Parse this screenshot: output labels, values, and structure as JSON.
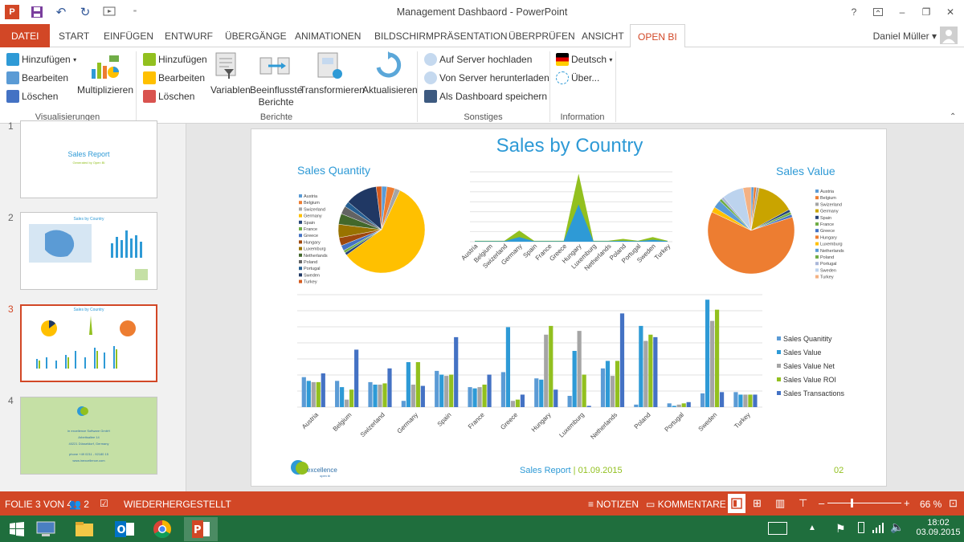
{
  "window": {
    "title": "Management Dashbaord - PowerPoint",
    "help": "?",
    "minimize": "–",
    "restore": "❐",
    "close": "✕"
  },
  "ribbon_tabs": [
    "DATEI",
    "START",
    "EINFÜGEN",
    "ENTWURF",
    "ÜBERGÄNGE",
    "ANIMATIONEN",
    "BILDSCHIRMPRÄSENTATION",
    "ÜBERPRÜFEN",
    "ANSICHT",
    "OPEN BI"
  ],
  "user": "Daniel Müller",
  "ribbon": {
    "vis": {
      "add": "Hinzufügen",
      "edit": "Bearbeiten",
      "delete": "Löschen",
      "multi": "Multiplizieren",
      "label": "Visualisierungen"
    },
    "rep": {
      "add": "Hinzufügen",
      "edit": "Bearbeiten",
      "delete": "Löschen",
      "variables": "Variablen",
      "influenced1": "Beeinflusste",
      "influenced2": "Berichte",
      "transform": "Transformieren",
      "refresh": "Aktualisieren",
      "label": "Berichte"
    },
    "misc": {
      "upload": "Auf Server hochladen",
      "download": "Von Server herunterladen",
      "dashboard": "Als Dashboard speichern",
      "label": "Sonstiges"
    },
    "info": {
      "lang": "Deutsch",
      "about": "Über...",
      "label": "Information"
    }
  },
  "thumbnails": {
    "numbers": [
      "1",
      "2",
      "3",
      "4"
    ],
    "t1_title": "Sales Report",
    "t1_sub": "Generated by Open BI",
    "t2_title": "Sales by Country",
    "t3_title": "Sales by Country",
    "t4_lines": [
      "in excellence Software GmbH",
      "Arbeitsallee 14",
      "40221 Düsseldorf, Germany",
      "phone +49 0211 - 92180 15",
      "www.inexcellence.com"
    ]
  },
  "slide": {
    "title": "Sales by Country",
    "qty_title": "Sales Quantity",
    "value_title": "Sales Value",
    "footer_report": "Sales Report",
    "footer_date": "01.09.2015",
    "page": "02",
    "logo_text": "excellence",
    "logo_sub": "open bi"
  },
  "colors": {
    "accent": "#d24726",
    "title_blue": "#2e9ad6",
    "green": "#92c01f",
    "taskbar": "#1f6e3d"
  },
  "chart_data": [
    {
      "type": "pie",
      "title": "Sales Quantity",
      "categories": [
        "Austria",
        "Belgium",
        "Swizerland",
        "Germany",
        "Spain",
        "France",
        "Greece",
        "Hungary",
        "Luxemburg",
        "Netherlands",
        "Poland",
        "Portugal",
        "Sweden",
        "Turkey"
      ],
      "values": [
        2,
        3,
        2,
        58,
        1,
        1,
        2,
        3,
        5,
        4,
        3,
        2,
        12,
        2
      ],
      "colors": [
        "#5b9bd5",
        "#ed7d31",
        "#a5a5a5",
        "#ffc000",
        "#264478",
        "#70ad47",
        "#4472c4",
        "#9e480e",
        "#997300",
        "#43682b",
        "#636363",
        "#255e91",
        "#203864",
        "#d55b1f"
      ],
      "legend": "left"
    },
    {
      "type": "area",
      "categories": [
        "Austria",
        "Belgium",
        "Swizerland",
        "Germany",
        "Spain",
        "France",
        "Greece",
        "Hungary",
        "Luxemburg",
        "Netherlands",
        "Poland",
        "Portugal",
        "Sweden",
        "Turkey"
      ],
      "series": [
        {
          "values": [
            1,
            1,
            1,
            12,
            1,
            1,
            1,
            73,
            1,
            1,
            3,
            1,
            5,
            1
          ],
          "color": "#92c01f"
        },
        {
          "values": [
            0.5,
            0.5,
            0.5,
            5,
            0.5,
            0.5,
            0.5,
            40,
            0.5,
            0.5,
            1,
            0.5,
            2,
            0.5
          ],
          "color": "#2e9ad6"
        }
      ],
      "grid": true
    },
    {
      "type": "pie",
      "title": "Sales Value",
      "categories": [
        "Austria",
        "Belgium",
        "Swizerland",
        "Germany",
        "Spain",
        "France",
        "Greece",
        "Hungary",
        "Luxemburg",
        "Netherlands",
        "Poland",
        "Portugal",
        "Sweden",
        "Turkey"
      ],
      "values": [
        1,
        1,
        1,
        14,
        1,
        1,
        1,
        62,
        2,
        3,
        1,
        1,
        8,
        3
      ],
      "colors": [
        "#5b9bd5",
        "#ed7d31",
        "#a5a5a5",
        "#c9a400",
        "#264478",
        "#70ad47",
        "#4472c4",
        "#ed7d31",
        "#ffc000",
        "#5b9bd5",
        "#70ad47",
        "#aab7d9",
        "#bcd3ee",
        "#f4b183"
      ],
      "legend": "right"
    },
    {
      "type": "bar",
      "categories": [
        "Austria",
        "Belgium",
        "Swizerland",
        "Germany",
        "Spain",
        "France",
        "Greece",
        "Hungary",
        "Luxemburg",
        "Netherlands",
        "Poland",
        "Portugal",
        "Sweden",
        "Turkey"
      ],
      "series": [
        {
          "name": "Sales Quanitity",
          "values": [
            2.4,
            2.1,
            2.0,
            0.5,
            2.9,
            1.6,
            2.8,
            2.3,
            0.9,
            3.1,
            0.2,
            0.3,
            1.1,
            1.2
          ],
          "color": "#5b9bd5"
        },
        {
          "name": "Sales Value",
          "values": [
            2.1,
            1.6,
            1.8,
            3.6,
            2.6,
            1.5,
            6.4,
            2.2,
            4.5,
            3.7,
            6.5,
            0.1,
            8.6,
            1.0
          ],
          "color": "#2e9ad6"
        },
        {
          "name": "Sales Value Net",
          "values": [
            2.0,
            0.6,
            1.8,
            1.8,
            2.5,
            1.6,
            0.5,
            5.8,
            6.1,
            2.5,
            5.3,
            0.2,
            6.9,
            1.0
          ],
          "color": "#a5a5a5"
        },
        {
          "name": "Sales Value ROI",
          "values": [
            2.0,
            1.4,
            1.9,
            3.6,
            2.6,
            1.8,
            0.6,
            6.5,
            2.6,
            3.7,
            5.8,
            0.3,
            7.8,
            1.0
          ],
          "color": "#92c01f"
        },
        {
          "name": "Sales Transactions",
          "values": [
            2.7,
            4.6,
            3.1,
            1.7,
            5.6,
            2.6,
            1.0,
            1.4,
            0.1,
            7.5,
            5.6,
            0.4,
            1.2,
            1.0
          ],
          "color": "#4472c4"
        }
      ],
      "ylim": [
        0,
        9
      ],
      "grid": true,
      "legend": "right"
    }
  ],
  "status": {
    "slide": "FOLIE 3 VON 4",
    "users": "2",
    "restored": "WIEDERHERGESTELLT",
    "notes": "NOTIZEN",
    "comments": "KOMMENTARE",
    "zoom": "66 %",
    "zoom_level": 0.33
  },
  "taskbar": {
    "time": "18:02",
    "date": "03.09.2015"
  }
}
